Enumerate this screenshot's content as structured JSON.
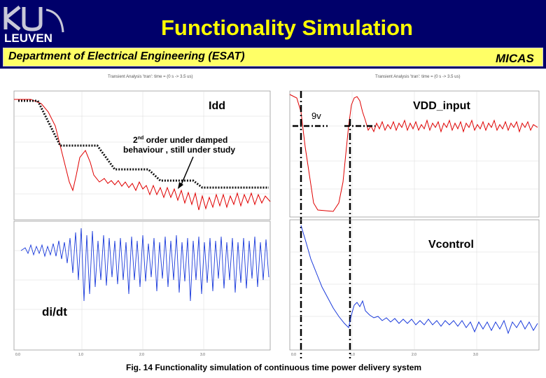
{
  "header": {
    "logo_text": "LEUVEN",
    "title": "Functionality Simulation",
    "department": "Department of Electrical Engineering (ESAT)",
    "group": "MICAS"
  },
  "plots": {
    "top_left_title": "Transient Analysis 'tran': time = (0 s -> 3.5 us)",
    "top_right_title": "Transient Analysis 'tran': time = (0 s -> 3.5 us)"
  },
  "labels": {
    "idd": "Idd",
    "vdd_input": "VDD_input",
    "nine_v": "9v",
    "damped_line1": "order under damped",
    "damped_prefix": "2",
    "damped_sup": "nd",
    "damped_line2": "behaviour ,  still under study",
    "vcontrol": "Vcontrol",
    "didt": "di/dt"
  },
  "caption": "Fig. 14  Functionality simulation of continuous time power delivery system",
  "colors": {
    "header_bg": "#00006a",
    "title": "#ffff00",
    "dept_bar": "#ffff66",
    "trace_red": "#e00000",
    "trace_blue": "#1a3adb"
  }
}
